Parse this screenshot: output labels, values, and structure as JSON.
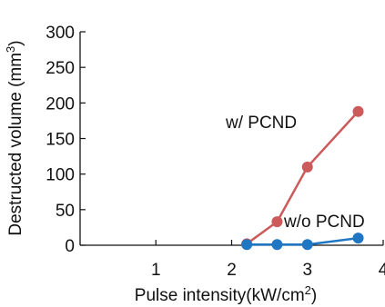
{
  "chart_data": {
    "type": "line",
    "xlabel": "Pulse intensity(kW/cm",
    "xlabel_sup": "2",
    "xlabel_end": ")",
    "ylabel": "Destructed volume (mm",
    "ylabel_sup": "3",
    "ylabel_end": ")",
    "xlim": [
      0,
      4
    ],
    "ylim": [
      0,
      300
    ],
    "x_ticks": [
      "1",
      "2",
      "3",
      "4"
    ],
    "x_tick_values": [
      1,
      2,
      3,
      4
    ],
    "y_ticks": [
      "0",
      "50",
      "100",
      "150",
      "200",
      "250",
      "300"
    ],
    "y_tick_values": [
      0,
      50,
      100,
      150,
      200,
      250,
      300
    ],
    "grid": false,
    "series": [
      {
        "name": "w/ PCND",
        "color": "#cc5a5a",
        "x": [
          2.2,
          2.6,
          3.0,
          3.67
        ],
        "y": [
          2,
          33,
          110,
          188
        ]
      },
      {
        "name": "w/o PCND",
        "color": "#1f77c4",
        "x": [
          2.2,
          2.6,
          3.0,
          3.67
        ],
        "y": [
          1,
          1,
          1,
          10
        ]
      }
    ]
  }
}
